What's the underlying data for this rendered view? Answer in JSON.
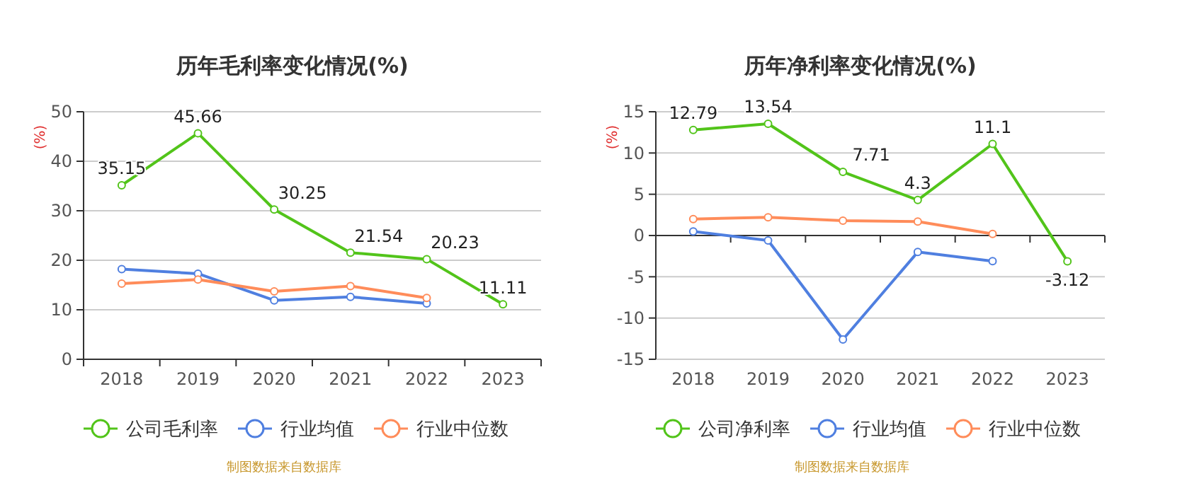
{
  "chart_data": [
    {
      "type": "line",
      "title": "历年毛利率变化情况(%)",
      "ylabel": "(%)",
      "categories": [
        "2018",
        "2019",
        "2020",
        "2021",
        "2022",
        "2023"
      ],
      "ylim": [
        0,
        50
      ],
      "yticks": [
        0,
        10,
        20,
        30,
        40,
        50
      ],
      "grid": "y",
      "legend": "bottom",
      "marker": "circle",
      "line_style": "solid",
      "annotations": [
        "制图数据来自数据库"
      ],
      "series": [
        {
          "name": "公司毛利率",
          "color": "#52c41a",
          "values": [
            35.15,
            45.66,
            30.25,
            21.54,
            20.23,
            11.11
          ],
          "value_labels": [
            "35.15",
            "45.66",
            "30.25",
            "21.54",
            "20.23",
            "11.11"
          ]
        },
        {
          "name": "行业均值",
          "color": "#4f7fe0",
          "values": [
            18.2,
            17.3,
            11.9,
            12.6,
            11.3,
            null
          ]
        },
        {
          "name": "行业中位数",
          "color": "#ff8c5a",
          "values": [
            15.3,
            16.1,
            13.7,
            14.8,
            12.4,
            null
          ]
        }
      ]
    },
    {
      "type": "line",
      "title": "历年净利率变化情况(%)",
      "ylabel": "(%)",
      "categories": [
        "2018",
        "2019",
        "2020",
        "2021",
        "2022",
        "2023"
      ],
      "ylim": [
        -15,
        15
      ],
      "yticks": [
        -15,
        -10,
        -5,
        0,
        5,
        10,
        15
      ],
      "grid": "y",
      "legend": "bottom",
      "marker": "circle",
      "line_style": "solid",
      "annotations": [
        "制图数据来自数据库"
      ],
      "series": [
        {
          "name": "公司净利率",
          "color": "#52c41a",
          "values": [
            12.79,
            13.54,
            7.71,
            4.3,
            11.1,
            -3.12
          ],
          "value_labels": [
            "12.79",
            "13.54",
            "7.71",
            "4.3",
            "11.1",
            "-3.12"
          ]
        },
        {
          "name": "行业均值",
          "color": "#4f7fe0",
          "values": [
            0.5,
            -0.6,
            -12.6,
            -2.0,
            -3.1,
            null
          ]
        },
        {
          "name": "行业中位数",
          "color": "#ff8c5a",
          "values": [
            2.0,
            2.2,
            1.8,
            1.7,
            0.2,
            null
          ]
        }
      ]
    }
  ]
}
